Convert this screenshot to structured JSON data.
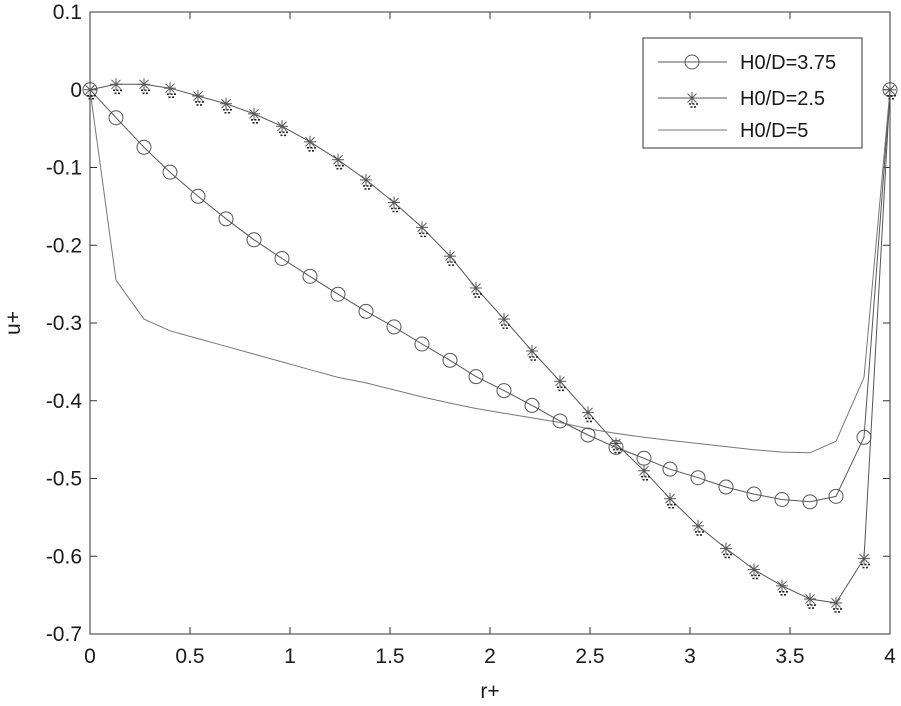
{
  "chart_data": {
    "type": "line",
    "title": "",
    "xlabel": "r+",
    "ylabel": "u+",
    "xlim": [
      0,
      4
    ],
    "ylim": [
      -0.7,
      0.1
    ],
    "xticks": [
      0,
      0.5,
      1,
      1.5,
      2,
      2.5,
      3,
      3.5,
      4
    ],
    "xtick_labels": [
      "0",
      "0.5",
      "1",
      "1.5",
      "2",
      "2.5",
      "3",
      "3.5",
      "4"
    ],
    "yticks": [
      0.1,
      0,
      -0.1,
      -0.2,
      -0.3,
      -0.4,
      -0.5,
      -0.6,
      -0.7
    ],
    "ytick_labels": [
      "0.1",
      "0",
      "-0.1",
      "-0.2",
      "-0.3",
      "-0.4",
      "-0.5",
      "-0.6",
      "-0.7"
    ],
    "grid": false,
    "legend_position": "top-right",
    "series": [
      {
        "name": "H0/D=3.75",
        "marker": "circle",
        "color": "#555555",
        "x": [
          0,
          0.13,
          0.27,
          0.4,
          0.54,
          0.68,
          0.82,
          0.96,
          1.1,
          1.24,
          1.38,
          1.52,
          1.66,
          1.8,
          1.93,
          2.07,
          2.21,
          2.35,
          2.49,
          2.63,
          2.77,
          2.9,
          3.04,
          3.18,
          3.32,
          3.46,
          3.6,
          3.73,
          3.87,
          4.0
        ],
        "y": [
          0,
          -0.036,
          -0.074,
          -0.106,
          -0.137,
          -0.166,
          -0.193,
          -0.217,
          -0.24,
          -0.263,
          -0.285,
          -0.305,
          -0.327,
          -0.348,
          -0.369,
          -0.387,
          -0.406,
          -0.426,
          -0.444,
          -0.46,
          -0.474,
          -0.488,
          -0.499,
          -0.511,
          -0.52,
          -0.527,
          -0.53,
          -0.523,
          -0.447,
          0
        ]
      },
      {
        "name": "H0/D=2.5",
        "marker": "star",
        "color": "#555555",
        "x": [
          0,
          0.13,
          0.27,
          0.4,
          0.54,
          0.68,
          0.82,
          0.96,
          1.1,
          1.24,
          1.38,
          1.52,
          1.66,
          1.8,
          1.93,
          2.07,
          2.21,
          2.35,
          2.49,
          2.63,
          2.77,
          2.9,
          3.04,
          3.18,
          3.32,
          3.46,
          3.6,
          3.73,
          3.87,
          4.0
        ],
        "y": [
          0,
          0.007,
          0.007,
          0.002,
          -0.008,
          -0.018,
          -0.031,
          -0.047,
          -0.067,
          -0.09,
          -0.116,
          -0.145,
          -0.177,
          -0.214,
          -0.255,
          -0.295,
          -0.336,
          -0.375,
          -0.415,
          -0.455,
          -0.49,
          -0.526,
          -0.561,
          -0.59,
          -0.617,
          -0.638,
          -0.655,
          -0.66,
          -0.603,
          0
        ]
      },
      {
        "name": "H0/D=5",
        "marker": "none",
        "color": "#777777",
        "x": [
          0,
          0.13,
          0.27,
          0.4,
          0.54,
          0.68,
          0.82,
          0.96,
          1.1,
          1.24,
          1.38,
          1.52,
          1.66,
          1.8,
          1.93,
          2.07,
          2.21,
          2.35,
          2.49,
          2.63,
          2.77,
          2.9,
          3.04,
          3.18,
          3.32,
          3.46,
          3.6,
          3.73,
          3.87,
          4.0
        ],
        "y": [
          0,
          -0.245,
          -0.295,
          -0.31,
          -0.32,
          -0.33,
          -0.34,
          -0.35,
          -0.36,
          -0.37,
          -0.377,
          -0.386,
          -0.395,
          -0.403,
          -0.41,
          -0.416,
          -0.422,
          -0.428,
          -0.436,
          -0.442,
          -0.447,
          -0.451,
          -0.455,
          -0.459,
          -0.463,
          -0.466,
          -0.467,
          -0.452,
          -0.37,
          0
        ]
      }
    ]
  }
}
